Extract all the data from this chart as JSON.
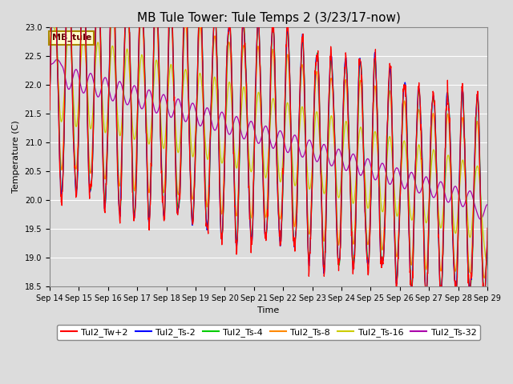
{
  "title": "MB Tule Tower: Tule Temps 2 (3/23/17-now)",
  "xlabel": "Time",
  "ylabel": "Temperature (C)",
  "background_color": "#dcdcdc",
  "plot_bg_color": "#dcdcdc",
  "ylim": [
    18.5,
    23.0
  ],
  "x_tick_labels": [
    "Sep 14",
    "Sep 15",
    "Sep 16",
    "Sep 17",
    "Sep 18",
    "Sep 19",
    "Sep 20",
    "Sep 21",
    "Sep 22",
    "Sep 23",
    "Sep 24",
    "Sep 25",
    "Sep 26",
    "Sep 27",
    "Sep 28",
    "Sep 29"
  ],
  "series_colors": {
    "Tul2_Tw+2": "#ff0000",
    "Tul2_Ts-2": "#0000ff",
    "Tul2_Ts-4": "#00cc00",
    "Tul2_Ts-8": "#ff8800",
    "Tul2_Ts-16": "#cccc00",
    "Tul2_Ts-32": "#aa00aa"
  },
  "legend_label_color": "#660000",
  "legend_bg": "#ffffcc",
  "legend_border": "#aa8800",
  "annotation_text": "MB_tule",
  "title_fontsize": 11,
  "axis_fontsize": 8,
  "tick_fontsize": 7,
  "legend_fontsize": 8,
  "grid_color": "#ffffff",
  "y_ticks": [
    18.5,
    19.0,
    19.5,
    20.0,
    20.5,
    21.0,
    21.5,
    22.0,
    22.5,
    23.0
  ]
}
